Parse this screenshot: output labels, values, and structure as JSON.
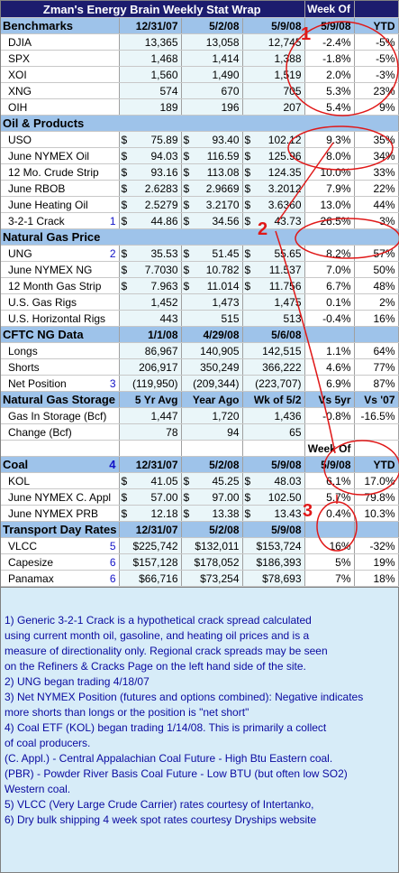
{
  "title": "Zman's Energy Brain Weekly Stat Wrap",
  "week_of_label": "Week Of",
  "week_of_date": "5/9/08",
  "ytd_label": "YTD",
  "benchmarks": {
    "header": "Benchmarks",
    "cols": [
      "12/31/07",
      "5/2/08",
      "5/9/08"
    ],
    "rows": [
      {
        "name": "DJIA",
        "v1": "13,365",
        "v2": "13,058",
        "v3": "12,745",
        "wk": "-2.4%",
        "ytd": "-5%"
      },
      {
        "name": "SPX",
        "v1": "1,468",
        "v2": "1,414",
        "v3": "1,388",
        "wk": "-1.8%",
        "ytd": "-5%"
      },
      {
        "name": "XOI",
        "v1": "1,560",
        "v2": "1,490",
        "v3": "1,519",
        "wk": "2.0%",
        "ytd": "-3%"
      },
      {
        "name": "XNG",
        "v1": "574",
        "v2": "670",
        "v3": "705",
        "wk": "5.3%",
        "ytd": "23%"
      },
      {
        "name": "OIH",
        "v1": "189",
        "v2": "196",
        "v3": "207",
        "wk": "5.4%",
        "ytd": "9%"
      }
    ]
  },
  "oil": {
    "header": "Oil & Products",
    "rows": [
      {
        "name": "USO",
        "d": "$",
        "v1": "75.89",
        "v2": "93.40",
        "v3": "102.12",
        "wk": "9.3%",
        "ytd": "35%"
      },
      {
        "name": "June NYMEX Oil",
        "d": "$",
        "v1": "94.03",
        "v2": "116.59",
        "v3": "125.96",
        "wk": "8.0%",
        "ytd": "34%"
      },
      {
        "name": "12 Mo. Crude Strip",
        "d": "$",
        "v1": "93.16",
        "v2": "113.08",
        "v3": "124.35",
        "wk": "10.0%",
        "ytd": "33%"
      },
      {
        "name": "June RBOB",
        "d": "$",
        "v1": "2.6283",
        "v2": "2.9669",
        "v3": "3.2012",
        "wk": "7.9%",
        "ytd": "22%"
      },
      {
        "name": "June Heating Oil",
        "d": "$",
        "v1": "2.5279",
        "v2": "3.2170",
        "v3": "3.6360",
        "wk": "13.0%",
        "ytd": "44%"
      },
      {
        "name": "3-2-1 Crack",
        "note": "1",
        "d": "$",
        "v1": "44.86",
        "v2": "34.56",
        "v3": "43.73",
        "wk": "26.5%",
        "ytd": "-3%"
      }
    ]
  },
  "natgas": {
    "header": "Natural Gas Price",
    "rows": [
      {
        "name": "UNG",
        "note": "2",
        "d": "$",
        "v1": "35.53",
        "v2": "51.45",
        "v3": "55.65",
        "wk": "8.2%",
        "ytd": "57%"
      },
      {
        "name": "June NYMEX NG",
        "d": "$",
        "v1": "7.7030",
        "v2": "10.782",
        "v3": "11.537",
        "wk": "7.0%",
        "ytd": "50%"
      },
      {
        "name": "12 Month Gas Strip",
        "d": "$",
        "v1": "7.963",
        "v2": "11.014",
        "v3": "11.756",
        "wk": "6.7%",
        "ytd": "48%"
      },
      {
        "name": "U.S. Gas Rigs",
        "d": "",
        "v1": "1,452",
        "v2": "1,473",
        "v3": "1,475",
        "wk": "0.1%",
        "ytd": "2%"
      },
      {
        "name": "U.S. Horizontal Rigs",
        "d": "",
        "v1": "443",
        "v2": "515",
        "v3": "513",
        "wk": "-0.4%",
        "ytd": "16%"
      }
    ]
  },
  "cftc": {
    "header": "CFTC NG Data",
    "cols": [
      "1/1/08",
      "4/29/08",
      "5/6/08"
    ],
    "rows": [
      {
        "name": "Longs",
        "v1": "86,967",
        "v2": "140,905",
        "v3": "142,515",
        "wk": "1.1%",
        "ytd": "64%"
      },
      {
        "name": "Shorts",
        "v1": "206,917",
        "v2": "350,249",
        "v3": "366,222",
        "wk": "4.6%",
        "ytd": "77%"
      },
      {
        "name": "Net Position",
        "note": "3",
        "v1": "(119,950)",
        "v2": "(209,344)",
        "v3": "(223,707)",
        "wk": "6.9%",
        "ytd": "87%"
      }
    ]
  },
  "storage": {
    "header": "Natural Gas Storage",
    "cols": [
      "5 Yr Avg",
      "Year Ago",
      "Wk of 5/2",
      "Vs 5yr",
      "Vs '07"
    ],
    "rows": [
      {
        "name": "Gas In Storage (Bcf)",
        "v1": "1,447",
        "v2": "1,720",
        "v3": "1,436",
        "wk": "-0.8%",
        "ytd": "-16.5%"
      },
      {
        "name": "Change (Bcf)",
        "v1": "78",
        "v2": "94",
        "v3": "65",
        "wk": "",
        "ytd": ""
      }
    ]
  },
  "coal": {
    "header": "Coal",
    "note": "4",
    "cols": [
      "12/31/07",
      "5/2/08",
      "5/9/08"
    ],
    "rows": [
      {
        "name": "KOL",
        "d": "$",
        "v1": "41.05",
        "v2": "45.25",
        "v3": "48.03",
        "wk": "6.1%",
        "ytd": "17.0%"
      },
      {
        "name": "June NYMEX C. Appl",
        "d": "$",
        "v1": "57.00",
        "v2": "97.00",
        "v3": "102.50",
        "wk": "5.7%",
        "ytd": "79.8%"
      },
      {
        "name": "June NYMEX PRB",
        "d": "$",
        "v1": "12.18",
        "v2": "13.38",
        "v3": "13.43",
        "wk": "0.4%",
        "ytd": "10.3%"
      }
    ]
  },
  "transport": {
    "header": "Transport Day Rates",
    "cols": [
      "12/31/07",
      "5/2/08",
      "5/9/08"
    ],
    "rows": [
      {
        "name": "VLCC",
        "note": "5",
        "v1": "$225,742",
        "v2": "$132,011",
        "v3": "$153,724",
        "wk": "16%",
        "ytd": "-32%"
      },
      {
        "name": "Capesize",
        "note": "6",
        "v1": "$157,128",
        "v2": "$178,052",
        "v3": "$186,393",
        "wk": "5%",
        "ytd": "19%"
      },
      {
        "name": "Panamax",
        "note": "6",
        "v1": "$66,716",
        "v2": "$73,254",
        "v3": "$78,693",
        "wk": "7%",
        "ytd": "18%"
      }
    ]
  },
  "annotations": [
    "1",
    "2",
    "3"
  ],
  "colors": {
    "title_bg": "#1c1c6e",
    "header_bg": "#9ec3ea",
    "notes_bg": "#d7ecf8",
    "notes_text": "#0a0aa0",
    "annotation": "#e01818"
  },
  "notes": [
    "1) Generic 3-2-1 Crack is a hypothetical crack spread calculated",
    "using current month oil, gasoline, and heating oil prices and is a",
    "measure of directionality only. Regional crack spreads may be seen",
    "on the Refiners & Cracks Page on the left hand side of the site.",
    "2) UNG began trading 4/18/07",
    "3) Net NYMEX Position (futures and options combined): Negative indicates",
    "more shorts than longs or the position is \"net short\"",
    "4) Coal ETF (KOL) began trading 1/14/08. This is primarily a collect",
    "of coal producers.",
    "(C. Appl.) - Central Appalachian Coal Future - High Btu Eastern coal.",
    "(PBR) - Powder River Basis Coal Future - Low BTU (but often low SO2)",
    "Western coal.",
    "5) VLCC (Very Large Crude Carrier) rates courtesy of Intertanko,",
    "6) Dry bulk shipping 4 week spot rates courtesy Dryships website"
  ]
}
